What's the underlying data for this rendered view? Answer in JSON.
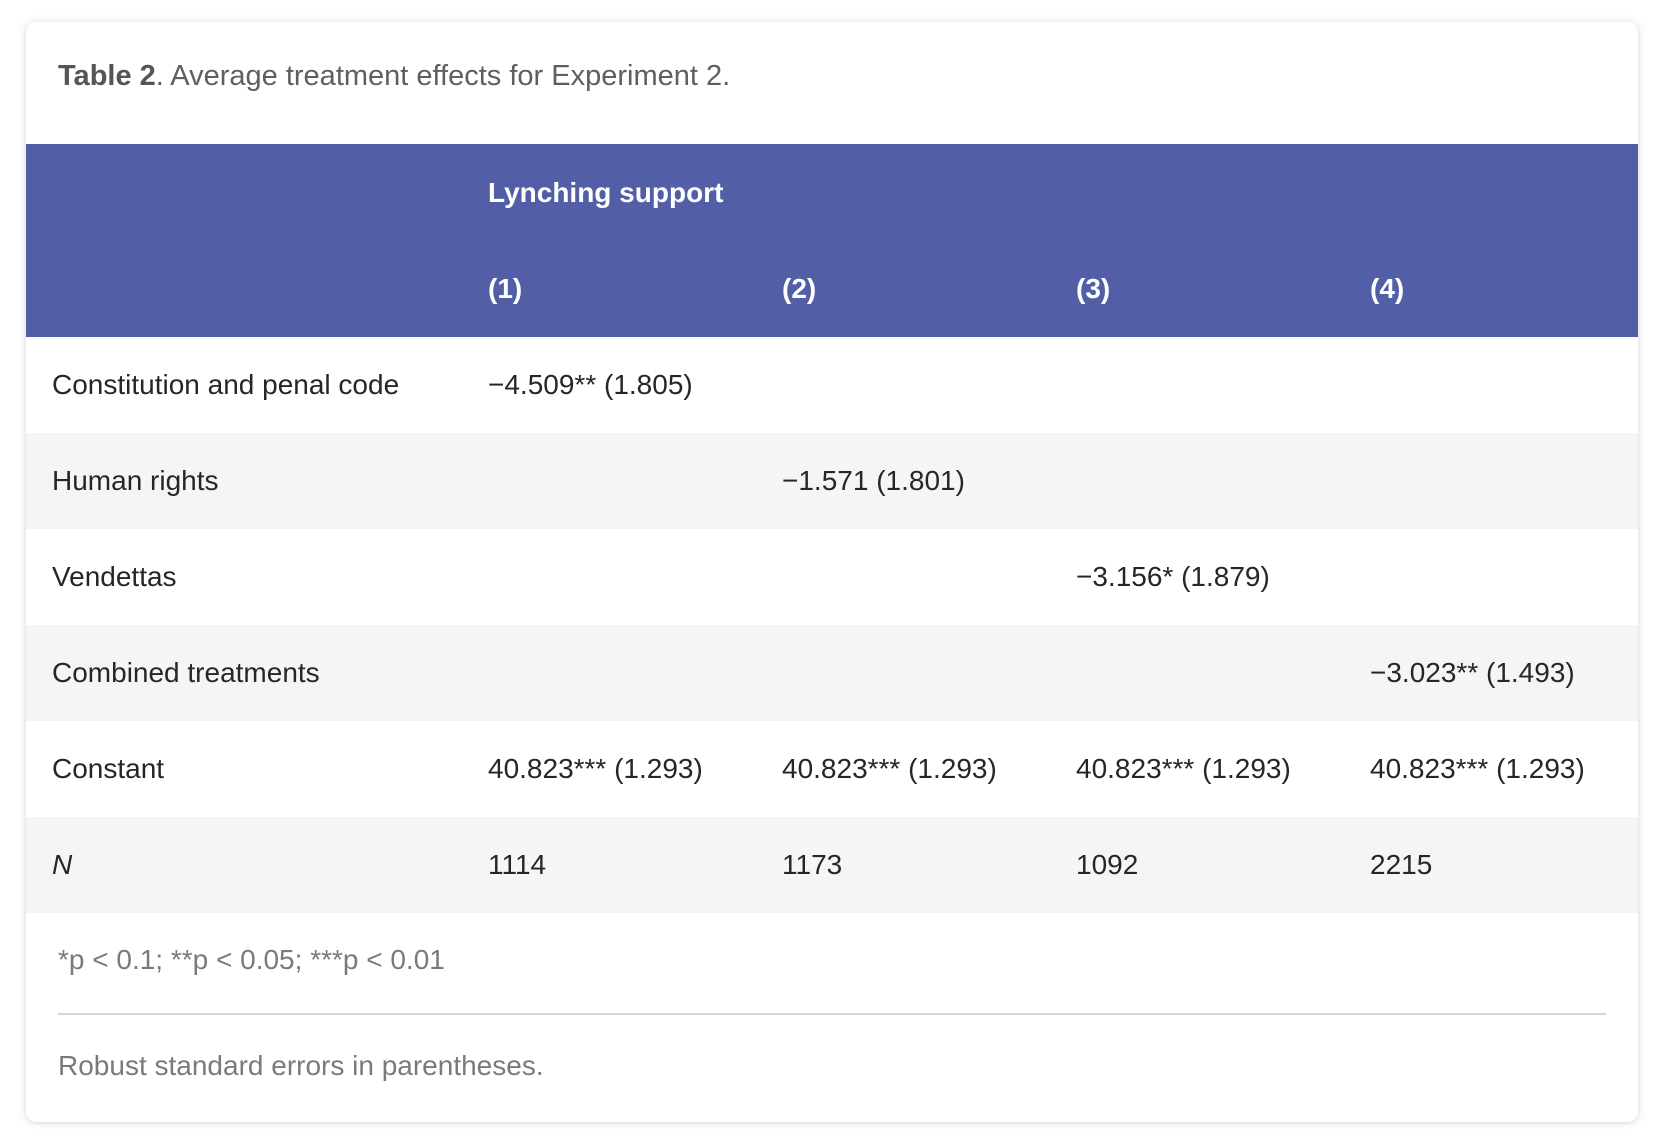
{
  "caption": {
    "label": "Table 2",
    "text": ". Average treatment effects for Experiment 2."
  },
  "header": {
    "group_label": "Lynching support",
    "columns": [
      "(1)",
      "(2)",
      "(3)",
      "(4)"
    ]
  },
  "rows": [
    {
      "label": "Constitution and penal code",
      "cells": [
        "−4.509** (1.805)",
        "",
        "",
        ""
      ]
    },
    {
      "label": "Human rights",
      "cells": [
        "",
        "−1.571 (1.801)",
        "",
        ""
      ]
    },
    {
      "label": "Vendettas",
      "cells": [
        "",
        "",
        "−3.156* (1.879)",
        ""
      ]
    },
    {
      "label": "Combined treatments",
      "cells": [
        "",
        "",
        "",
        "−3.023** (1.493)"
      ]
    },
    {
      "label": "Constant",
      "cells": [
        "40.823*** (1.293)",
        "40.823*** (1.293)",
        "40.823*** (1.293)",
        "40.823*** (1.293)"
      ]
    },
    {
      "label": "N",
      "cells": [
        "1114",
        "1173",
        "1092",
        "2215"
      ]
    }
  ],
  "footnotes": {
    "significance": "*p < 0.1; **p < 0.05; ***p < 0.01",
    "standard_errors": "Robust standard errors in parentheses."
  },
  "colors": {
    "header_bg": "#525fa7",
    "header_text": "#ffffff",
    "stripe_bg": "#f5f5f5",
    "body_text": "#262626",
    "muted_text": "#7a7a7a"
  }
}
